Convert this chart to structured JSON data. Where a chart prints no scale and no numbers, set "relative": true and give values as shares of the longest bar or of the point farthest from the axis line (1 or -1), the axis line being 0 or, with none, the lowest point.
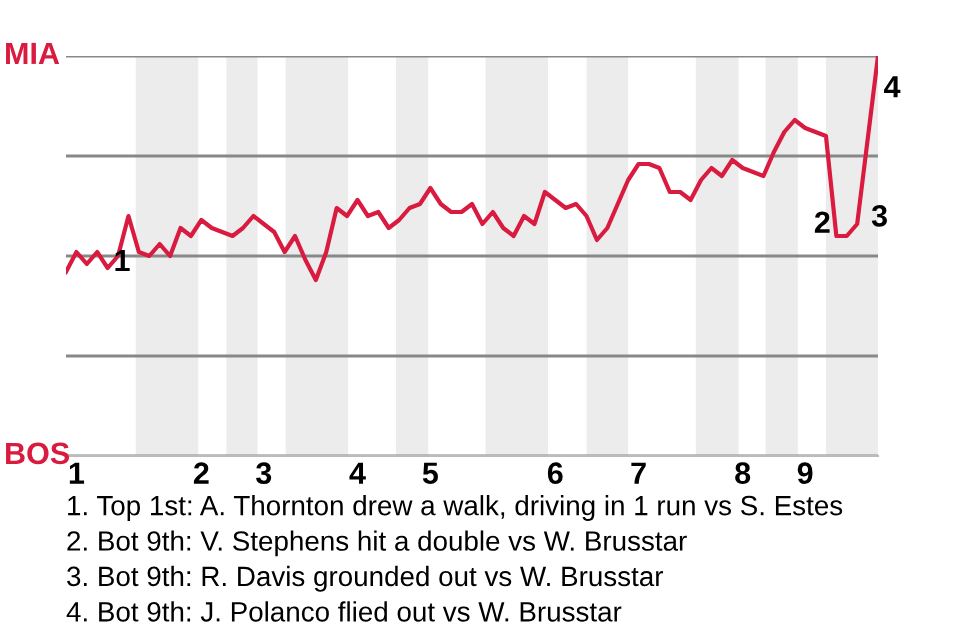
{
  "chart_data": {
    "type": "line",
    "relative": true,
    "categories": [
      null,
      "1",
      null,
      null,
      null,
      null,
      null,
      null,
      null,
      null,
      null,
      null,
      null,
      "2",
      null,
      null,
      null,
      null,
      null,
      "3",
      null,
      null,
      null,
      null,
      null,
      null,
      null,
      null,
      "4",
      null,
      null,
      null,
      null,
      null,
      null,
      "5",
      null,
      null,
      null,
      null,
      null,
      null,
      null,
      null,
      null,
      null,
      null,
      "6",
      null,
      null,
      null,
      null,
      null,
      null,
      null,
      "7",
      null,
      null,
      null,
      null,
      null,
      null,
      null,
      null,
      null,
      "8",
      null,
      null,
      null,
      null,
      null,
      "9",
      null,
      null,
      null,
      null,
      null,
      null,
      null
    ],
    "series": [
      {
        "color": "#d81b3f",
        "values": [
          0.46,
          0.51,
          0.48,
          0.51,
          0.47,
          0.5,
          0.6,
          0.51,
          0.5,
          0.53,
          0.5,
          0.57,
          0.55,
          0.59,
          0.57,
          0.56,
          0.55,
          0.57,
          0.6,
          0.58,
          0.56,
          0.51,
          0.55,
          0.49,
          0.44,
          0.51,
          0.62,
          0.6,
          0.64,
          0.6,
          0.61,
          0.57,
          0.59,
          0.62,
          0.63,
          0.67,
          0.63,
          0.61,
          0.61,
          0.63,
          0.58,
          0.61,
          0.57,
          0.55,
          0.6,
          0.58,
          0.66,
          0.64,
          0.62,
          0.63,
          0.6,
          0.54,
          0.57,
          0.63,
          0.69,
          0.73,
          0.73,
          0.72,
          0.66,
          0.66,
          0.64,
          0.69,
          0.72,
          0.7,
          0.74,
          0.72,
          0.71,
          0.7,
          0.76,
          0.81,
          0.84,
          0.82,
          0.81,
          0.8,
          0.55,
          0.55,
          0.58,
          0.79,
          1.0
        ]
      }
    ],
    "grid": "y",
    "annotations": [
      "MIA",
      "BOS",
      "1",
      "2",
      "3",
      "4",
      "1. Top 1st: A. Thornton drew a walk, driving in 1 run vs S. Estes",
      "2. Bot 9th: V. Stephens hit a double vs W. Brusstar",
      "3. Bot 9th: R. Davis grounded out vs W. Brusstar",
      "4. Bot 9th: J. Polanco flied out vs W. Brusstar"
    ]
  }
}
